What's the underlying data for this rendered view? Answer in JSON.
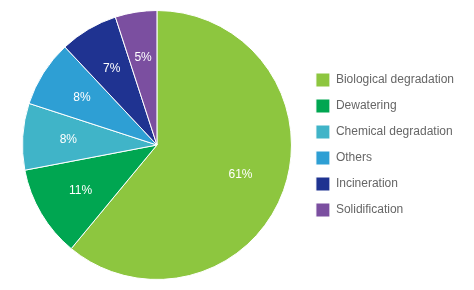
{
  "chart_data": {
    "type": "pie",
    "categories": [
      "Biological degradation",
      "Dewatering",
      "Chemical degradation",
      "Others",
      "Incineration",
      "Solidification"
    ],
    "values": [
      61,
      11,
      8,
      8,
      7,
      5
    ],
    "value_labels": [
      "61%",
      "11%",
      "8%",
      "8%",
      "7%",
      "5%"
    ],
    "colors": [
      "#8dc63f",
      "#00a651",
      "#40b4c8",
      "#2e9fd4",
      "#1f3391",
      "#7b4fa0"
    ],
    "data_labels": true,
    "legend": "right"
  }
}
